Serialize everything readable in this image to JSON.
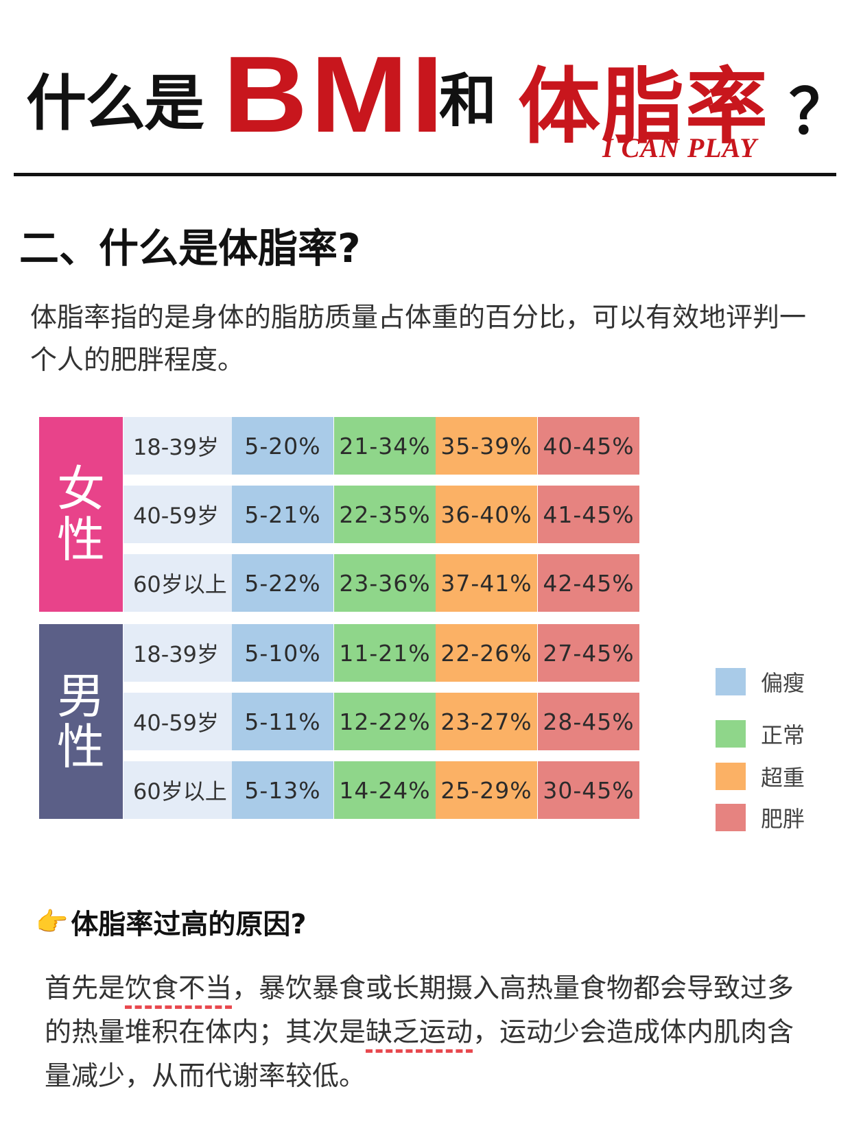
{
  "header": {
    "title_part1": "什么是",
    "title_bmi": "BMI",
    "title_and": "和",
    "title_bodyfat": "体脂率",
    "title_q": "？",
    "brand": "I CAN PLAY",
    "colors": {
      "red": "#c8161d",
      "black": "#111111"
    }
  },
  "section": {
    "title": "二、什么是体脂率?",
    "intro": "体脂率指的是身体的脂肪质量占体重的百分比，可以有效地评判一个人的肥胖程度。"
  },
  "table": {
    "groups": [
      {
        "sex_chars": [
          "女",
          "性"
        ],
        "color": "#e8438a",
        "rows": [
          {
            "age": "18-39岁",
            "values": [
              "5-20%",
              "21-34%",
              "35-39%",
              "40-45%"
            ]
          },
          {
            "age": "40-59岁",
            "values": [
              "5-21%",
              "22-35%",
              "36-40%",
              "41-45%"
            ]
          },
          {
            "age": "60岁以上",
            "values": [
              "5-22%",
              "23-36%",
              "37-41%",
              "42-45%"
            ]
          }
        ]
      },
      {
        "sex_chars": [
          "男",
          "性"
        ],
        "color": "#5b5f87",
        "rows": [
          {
            "age": "18-39岁",
            "values": [
              "5-10%",
              "11-21%",
              "22-26%",
              "27-45%"
            ]
          },
          {
            "age": "40-59岁",
            "values": [
              "5-11%",
              "12-22%",
              "23-27%",
              "28-45%"
            ]
          },
          {
            "age": "60岁以上",
            "values": [
              "5-13%",
              "14-24%",
              "25-29%",
              "30-45%"
            ]
          }
        ]
      }
    ],
    "column_colors": [
      "#a9cbe8",
      "#8fd68a",
      "#fbb165",
      "#e68380"
    ]
  },
  "legend": [
    {
      "label": "偏瘦",
      "color": "#a9cbe8"
    },
    {
      "label": "正常",
      "color": "#8fd68a"
    },
    {
      "label": "超重",
      "color": "#fbb165"
    },
    {
      "label": "肥胖",
      "color": "#e68380"
    }
  ],
  "reasons": {
    "icon": "pointing-hand-icon",
    "title": "体脂率过高的原因?",
    "p1": "首先是",
    "u1": "饮食不当",
    "p2": "，暴饮暴食或长期摄入高热量食物都会导致过多的热量堆积在体内；其次是",
    "u2": "缺乏运动",
    "p3": "，运动少会造成体内肌肉含量减少，从而代谢率较低。"
  }
}
